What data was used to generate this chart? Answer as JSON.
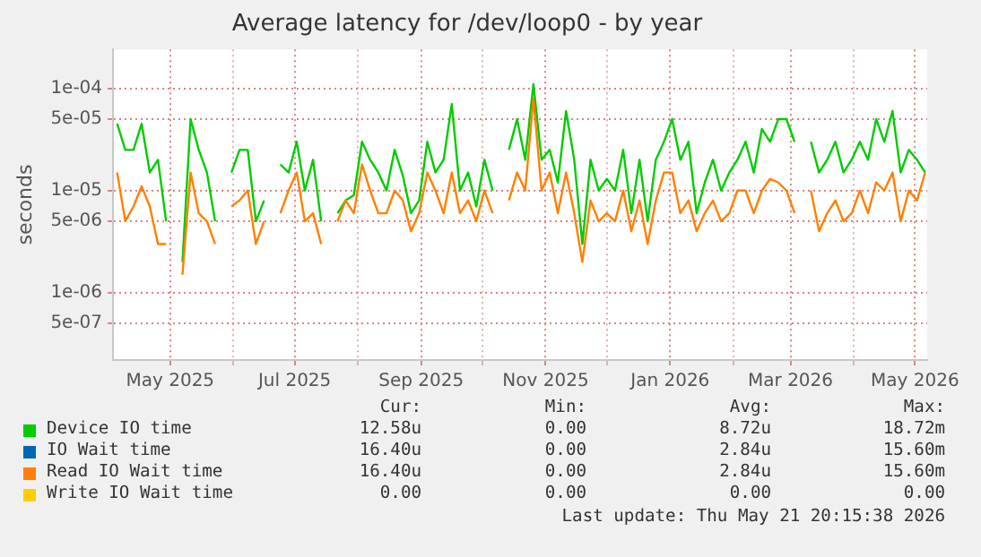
{
  "chart_data": {
    "type": "line",
    "title": "Average latency for /dev/loop0 - by year",
    "ylabel": "seconds",
    "log": "y",
    "grid": true,
    "legend": "bottom",
    "marker": "none",
    "line_style": "solid",
    "x": [
      "2025-04-05",
      "2025-04-09",
      "2025-04-13",
      "2025-04-17",
      "2025-04-21",
      "2025-04-25",
      "2025-04-29",
      "2025-05-03",
      "2025-05-07",
      "2025-05-11",
      "2025-05-15",
      "2025-05-19",
      "2025-05-23",
      "2025-05-27",
      "2025-05-31",
      "2025-06-04",
      "2025-06-08",
      "2025-06-12",
      "2025-06-16",
      "2025-06-20",
      "2025-06-24",
      "2025-06-28",
      "2025-07-02",
      "2025-07-06",
      "2025-07-10",
      "2025-07-14",
      "2025-07-18",
      "2025-07-22",
      "2025-07-26",
      "2025-07-30",
      "2025-08-03",
      "2025-08-07",
      "2025-08-11",
      "2025-08-15",
      "2025-08-19",
      "2025-08-23",
      "2025-08-27",
      "2025-08-31",
      "2025-09-04",
      "2025-09-08",
      "2025-09-12",
      "2025-09-16",
      "2025-09-20",
      "2025-09-24",
      "2025-09-28",
      "2025-10-02",
      "2025-10-06",
      "2025-10-10",
      "2025-10-14",
      "2025-10-18",
      "2025-10-22",
      "2025-10-26",
      "2025-10-30",
      "2025-11-03",
      "2025-11-07",
      "2025-11-11",
      "2025-11-15",
      "2025-11-19",
      "2025-11-23",
      "2025-11-27",
      "2025-12-01",
      "2025-12-05",
      "2025-12-09",
      "2025-12-13",
      "2025-12-17",
      "2025-12-21",
      "2025-12-25",
      "2025-12-29",
      "2026-01-02",
      "2026-01-06",
      "2026-01-10",
      "2026-01-14",
      "2026-01-18",
      "2026-01-22",
      "2026-01-26",
      "2026-01-30",
      "2026-02-03",
      "2026-02-07",
      "2026-02-11",
      "2026-02-15",
      "2026-02-19",
      "2026-02-23",
      "2026-02-27",
      "2026-03-03",
      "2026-03-07",
      "2026-03-11",
      "2026-03-15",
      "2026-03-19",
      "2026-03-23",
      "2026-03-27",
      "2026-03-31",
      "2026-04-04",
      "2026-04-08",
      "2026-04-12",
      "2026-04-16",
      "2026-04-20",
      "2026-04-24",
      "2026-04-28",
      "2026-05-02",
      "2026-05-06"
    ],
    "series": [
      {
        "name": "Device IO time",
        "color": "#00cc00",
        "values": [
          4.5e-05,
          2.5e-05,
          2.5e-05,
          4.5e-05,
          1.5e-05,
          2e-05,
          5e-06,
          null,
          2e-06,
          5e-05,
          2.5e-05,
          1.5e-05,
          5e-06,
          null,
          1.5e-05,
          2.5e-05,
          2.5e-05,
          5e-06,
          8e-06,
          null,
          1.8e-05,
          1.5e-05,
          3e-05,
          1e-05,
          2e-05,
          5e-06,
          null,
          6e-06,
          8e-06,
          9e-06,
          3e-05,
          2e-05,
          1.5e-05,
          1e-05,
          2.5e-05,
          1.4e-05,
          6e-06,
          8e-06,
          3e-05,
          1.5e-05,
          2e-05,
          7e-05,
          1e-05,
          1.5e-05,
          7e-06,
          2e-05,
          1e-05,
          null,
          2.5e-05,
          5e-05,
          2e-05,
          0.00011,
          2e-05,
          2.5e-05,
          1.2e-05,
          6e-05,
          2e-05,
          3e-06,
          2e-05,
          1e-05,
          1.3e-05,
          1e-05,
          2.5e-05,
          6e-06,
          2e-05,
          5e-06,
          2e-05,
          3e-05,
          5e-05,
          2e-05,
          3e-05,
          6e-06,
          1.2e-05,
          2e-05,
          1e-05,
          1.5e-05,
          2e-05,
          3e-05,
          1.5e-05,
          4e-05,
          3e-05,
          5e-05,
          5e-05,
          3e-05,
          null,
          3e-05,
          1.5e-05,
          2e-05,
          3e-05,
          1.5e-05,
          2e-05,
          3e-05,
          2e-05,
          5e-05,
          3e-05,
          6e-05,
          1.5e-05,
          2.5e-05,
          2e-05,
          1.5e-05
        ]
      },
      {
        "name": "IO Wait time",
        "color": "#0066b3",
        "values": [
          null,
          null,
          null,
          null,
          null,
          null,
          null,
          null,
          null,
          null,
          null,
          null,
          null,
          null,
          null,
          null,
          null,
          null,
          null,
          null,
          null,
          null,
          null,
          null,
          null,
          null,
          null,
          null,
          null,
          null,
          null,
          null,
          null,
          null,
          null,
          null,
          null,
          null,
          null,
          null,
          null,
          null,
          null,
          null,
          null,
          null,
          null,
          null,
          null,
          null,
          null,
          null,
          null,
          null,
          null,
          null,
          null,
          null,
          null,
          null,
          null,
          null,
          null,
          null,
          null,
          null,
          null,
          null,
          null,
          null,
          null,
          null,
          null,
          null,
          null,
          null,
          null,
          null,
          null,
          null,
          null,
          null,
          null,
          null,
          null,
          null,
          null,
          null,
          null,
          null,
          null,
          null,
          null,
          null,
          null,
          null,
          null,
          null,
          null,
          null
        ]
      },
      {
        "name": "Read IO Wait time",
        "color": "#ff8000",
        "values": [
          1.5e-05,
          5e-06,
          7e-06,
          1.1e-05,
          7e-06,
          3e-06,
          3e-06,
          null,
          1.5e-06,
          1.5e-05,
          6e-06,
          5e-06,
          3e-06,
          null,
          7e-06,
          8e-06,
          1e-05,
          3e-06,
          5e-06,
          null,
          6e-06,
          1e-05,
          1.5e-05,
          5e-06,
          6e-06,
          3e-06,
          null,
          5e-06,
          8e-06,
          6e-06,
          1.8e-05,
          1e-05,
          6e-06,
          6e-06,
          1e-05,
          8e-06,
          4e-06,
          6e-06,
          1.5e-05,
          1e-05,
          6e-06,
          1.5e-05,
          6e-06,
          8e-06,
          5e-06,
          1e-05,
          6e-06,
          null,
          8e-06,
          1.5e-05,
          1e-05,
          8e-05,
          1e-05,
          1.5e-05,
          6e-06,
          1.5e-05,
          6e-06,
          2e-06,
          8e-06,
          5e-06,
          6e-06,
          5e-06,
          1e-05,
          4e-06,
          8e-06,
          3e-06,
          8e-06,
          1.5e-05,
          1.5e-05,
          6e-06,
          8e-06,
          4e-06,
          6e-06,
          8e-06,
          5e-06,
          6e-06,
          1e-05,
          1e-05,
          6e-06,
          1e-05,
          1.3e-05,
          1.2e-05,
          1e-05,
          6e-06,
          null,
          1e-05,
          4e-06,
          6e-06,
          8e-06,
          5e-06,
          6e-06,
          1e-05,
          6e-06,
          1.2e-05,
          1e-05,
          1.5e-05,
          5e-06,
          1e-05,
          8e-06,
          1.5e-05
        ]
      },
      {
        "name": "Write IO Wait time",
        "color": "#ffcc00",
        "values": [
          null,
          null,
          null,
          null,
          null,
          null,
          null,
          null,
          null,
          null,
          null,
          null,
          null,
          null,
          null,
          null,
          null,
          null,
          null,
          null,
          null,
          null,
          null,
          null,
          null,
          null,
          null,
          null,
          null,
          null,
          null,
          null,
          null,
          null,
          null,
          null,
          null,
          null,
          null,
          null,
          null,
          null,
          null,
          null,
          null,
          null,
          null,
          null,
          null,
          null,
          null,
          null,
          null,
          null,
          null,
          null,
          null,
          null,
          null,
          null,
          null,
          null,
          null,
          null,
          null,
          null,
          null,
          null,
          null,
          null,
          null,
          null,
          null,
          null,
          null,
          null,
          null,
          null,
          null,
          null,
          null,
          null,
          null,
          null,
          null,
          null,
          null,
          null,
          null,
          null,
          null,
          null,
          null,
          null,
          null,
          null,
          null,
          null,
          null,
          null
        ]
      }
    ],
    "xlim": [
      "2025-04-03",
      "2026-05-07"
    ],
    "xticks": [
      {
        "value": "2025-05-01",
        "label": "May 2025"
      },
      {
        "value": "2025-06-01",
        "label": null
      },
      {
        "value": "2025-07-01",
        "label": "Jul 2025"
      },
      {
        "value": "2025-08-01",
        "label": null
      },
      {
        "value": "2025-09-01",
        "label": "Sep 2025"
      },
      {
        "value": "2025-10-01",
        "label": null
      },
      {
        "value": "2025-11-01",
        "label": "Nov 2025"
      },
      {
        "value": "2025-12-01",
        "label": null
      },
      {
        "value": "2026-01-01",
        "label": "Jan 2026"
      },
      {
        "value": "2026-02-01",
        "label": null
      },
      {
        "value": "2026-03-01",
        "label": "Mar 2026"
      },
      {
        "value": "2026-04-01",
        "label": null
      },
      {
        "value": "2026-05-01",
        "label": "May 2026"
      }
    ],
    "ylim": [
      2.2e-07,
      0.00024
    ],
    "yticks": [
      {
        "value": 5e-07,
        "label": "5e-07"
      },
      {
        "value": 1e-06,
        "label": "1e-06"
      },
      {
        "value": 5e-06,
        "label": "5e-06"
      },
      {
        "value": 1e-05,
        "label": "1e-05"
      },
      {
        "value": 5e-05,
        "label": "5e-05"
      },
      {
        "value": 0.0001,
        "label": "1e-04"
      }
    ],
    "annotations": [
      "Cur:",
      "Min:",
      "Avg:",
      "Max:",
      "12.58u",
      "0.00",
      "8.72u",
      "18.72m",
      "16.40u",
      "0.00",
      "2.84u",
      "15.60m",
      "16.40u",
      "0.00",
      "2.84u",
      "15.60m",
      "0.00",
      "0.00",
      "0.00",
      "0.00",
      "Last update: Thu May 21 20:15:38 2026"
    ]
  }
}
